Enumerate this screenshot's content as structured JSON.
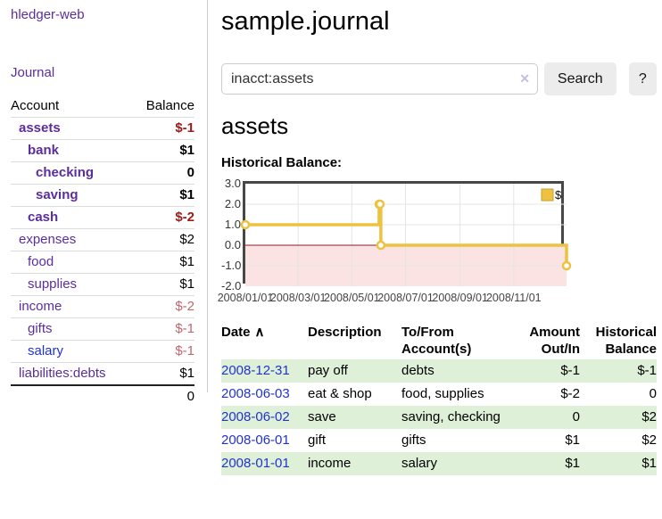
{
  "sidebar": {
    "brand": "hledger-web",
    "journal_link": "Journal",
    "accounts_table": {
      "headers": {
        "account": "Account",
        "balance": "Balance"
      },
      "rows": [
        {
          "name": "assets",
          "balance": "$-1",
          "depth": 1,
          "bold": true,
          "balance_style": "neg-strong",
          "link_color": "purple"
        },
        {
          "name": "bank",
          "balance": "$1",
          "depth": 2,
          "bold": true,
          "balance_style": "plain",
          "link_color": "purple"
        },
        {
          "name": "checking",
          "balance": "0",
          "depth": 3,
          "bold": true,
          "balance_style": "plain",
          "link_color": "purple"
        },
        {
          "name": "saving",
          "balance": "$1",
          "depth": 3,
          "bold": true,
          "balance_style": "plain",
          "link_color": "purple"
        },
        {
          "name": "cash",
          "balance": "$-2",
          "depth": 2,
          "bold": true,
          "balance_style": "neg-strong",
          "link_color": "purple"
        },
        {
          "name": "expenses",
          "balance": "$2",
          "depth": 1,
          "bold": false,
          "balance_style": "plain",
          "link_color": "purple"
        },
        {
          "name": "food",
          "balance": "$1",
          "depth": 2,
          "bold": false,
          "balance_style": "plain",
          "link_color": "purple"
        },
        {
          "name": "supplies",
          "balance": "$1",
          "depth": 2,
          "bold": false,
          "balance_style": "plain",
          "link_color": "purple"
        },
        {
          "name": "income",
          "balance": "$-2",
          "depth": 1,
          "bold": false,
          "balance_style": "neg-faded",
          "link_color": "purple"
        },
        {
          "name": "gifts",
          "balance": "$-1",
          "depth": 2,
          "bold": false,
          "balance_style": "neg-faded",
          "link_color": "purple"
        },
        {
          "name": "salary",
          "balance": "$-1",
          "depth": 2,
          "bold": false,
          "balance_style": "neg-faded",
          "link_color": "blue"
        },
        {
          "name": "liabilities:debts",
          "balance": "$1",
          "depth": 1,
          "bold": false,
          "balance_style": "plain",
          "link_color": "purple"
        }
      ],
      "total": "0"
    }
  },
  "header": {
    "title": "sample.journal"
  },
  "search": {
    "value": "inacct:assets",
    "clear_icon": "✕",
    "button_label": "Search",
    "help_label": "?"
  },
  "account_page": {
    "title": "assets",
    "chart_heading": "Historical Balance:"
  },
  "chart_data": {
    "type": "line",
    "step": true,
    "title": "Historical Balance",
    "series": [
      {
        "name": "$",
        "color": "#edc240",
        "points": [
          [
            "2008-01-01",
            1
          ],
          [
            "2008-06-01",
            2
          ],
          [
            "2008-06-02",
            2
          ],
          [
            "2008-06-03",
            0
          ],
          [
            "2008-12-31",
            -1
          ]
        ]
      }
    ],
    "x_range": [
      "2008-01-01",
      "2008-12-31"
    ],
    "x_ticks": [
      "2008/01/01",
      "2008/03/01",
      "2008/05/01",
      "2008/07/01",
      "2008/09/01",
      "2008/11/01"
    ],
    "y_ticks": [
      "3.0",
      "2.0",
      "1.0",
      "0.0",
      "-1.0",
      "-2.0"
    ],
    "ylim": [
      -2,
      3
    ],
    "grid": true,
    "legend": {
      "label": "$",
      "position": "top-right"
    },
    "negative_region_fill": "#fbe3e3",
    "zero_line_color": "#8b1c1c"
  },
  "register_table": {
    "headers": {
      "date": "Date",
      "sort_icon": "∧",
      "description": "Description",
      "accounts": "To/From Account(s)",
      "amount": "Amount Out/In",
      "balance": "Historical Balance"
    },
    "rows": [
      {
        "date": "2008-12-31",
        "description": "pay off",
        "accounts": "debts",
        "amount": "$-1",
        "amount_neg": true,
        "balance": "$-1",
        "balance_neg": true,
        "shaded": true
      },
      {
        "date": "2008-06-03",
        "description": "eat & shop",
        "accounts": "food, supplies",
        "amount": "$-2",
        "amount_neg": true,
        "balance": "0",
        "balance_neg": false,
        "shaded": false
      },
      {
        "date": "2008-06-02",
        "description": "save",
        "accounts": "saving, checking",
        "amount": "0",
        "amount_neg": false,
        "balance": "$2",
        "balance_neg": false,
        "shaded": true
      },
      {
        "date": "2008-06-01",
        "description": "gift",
        "accounts": "gifts",
        "amount": "$1",
        "amount_neg": false,
        "balance": "$2",
        "balance_neg": false,
        "shaded": false
      },
      {
        "date": "2008-01-01",
        "description": "income",
        "accounts": "salary",
        "amount": "$1",
        "amount_neg": false,
        "balance": "$1",
        "balance_neg": false,
        "shaded": true
      }
    ]
  }
}
